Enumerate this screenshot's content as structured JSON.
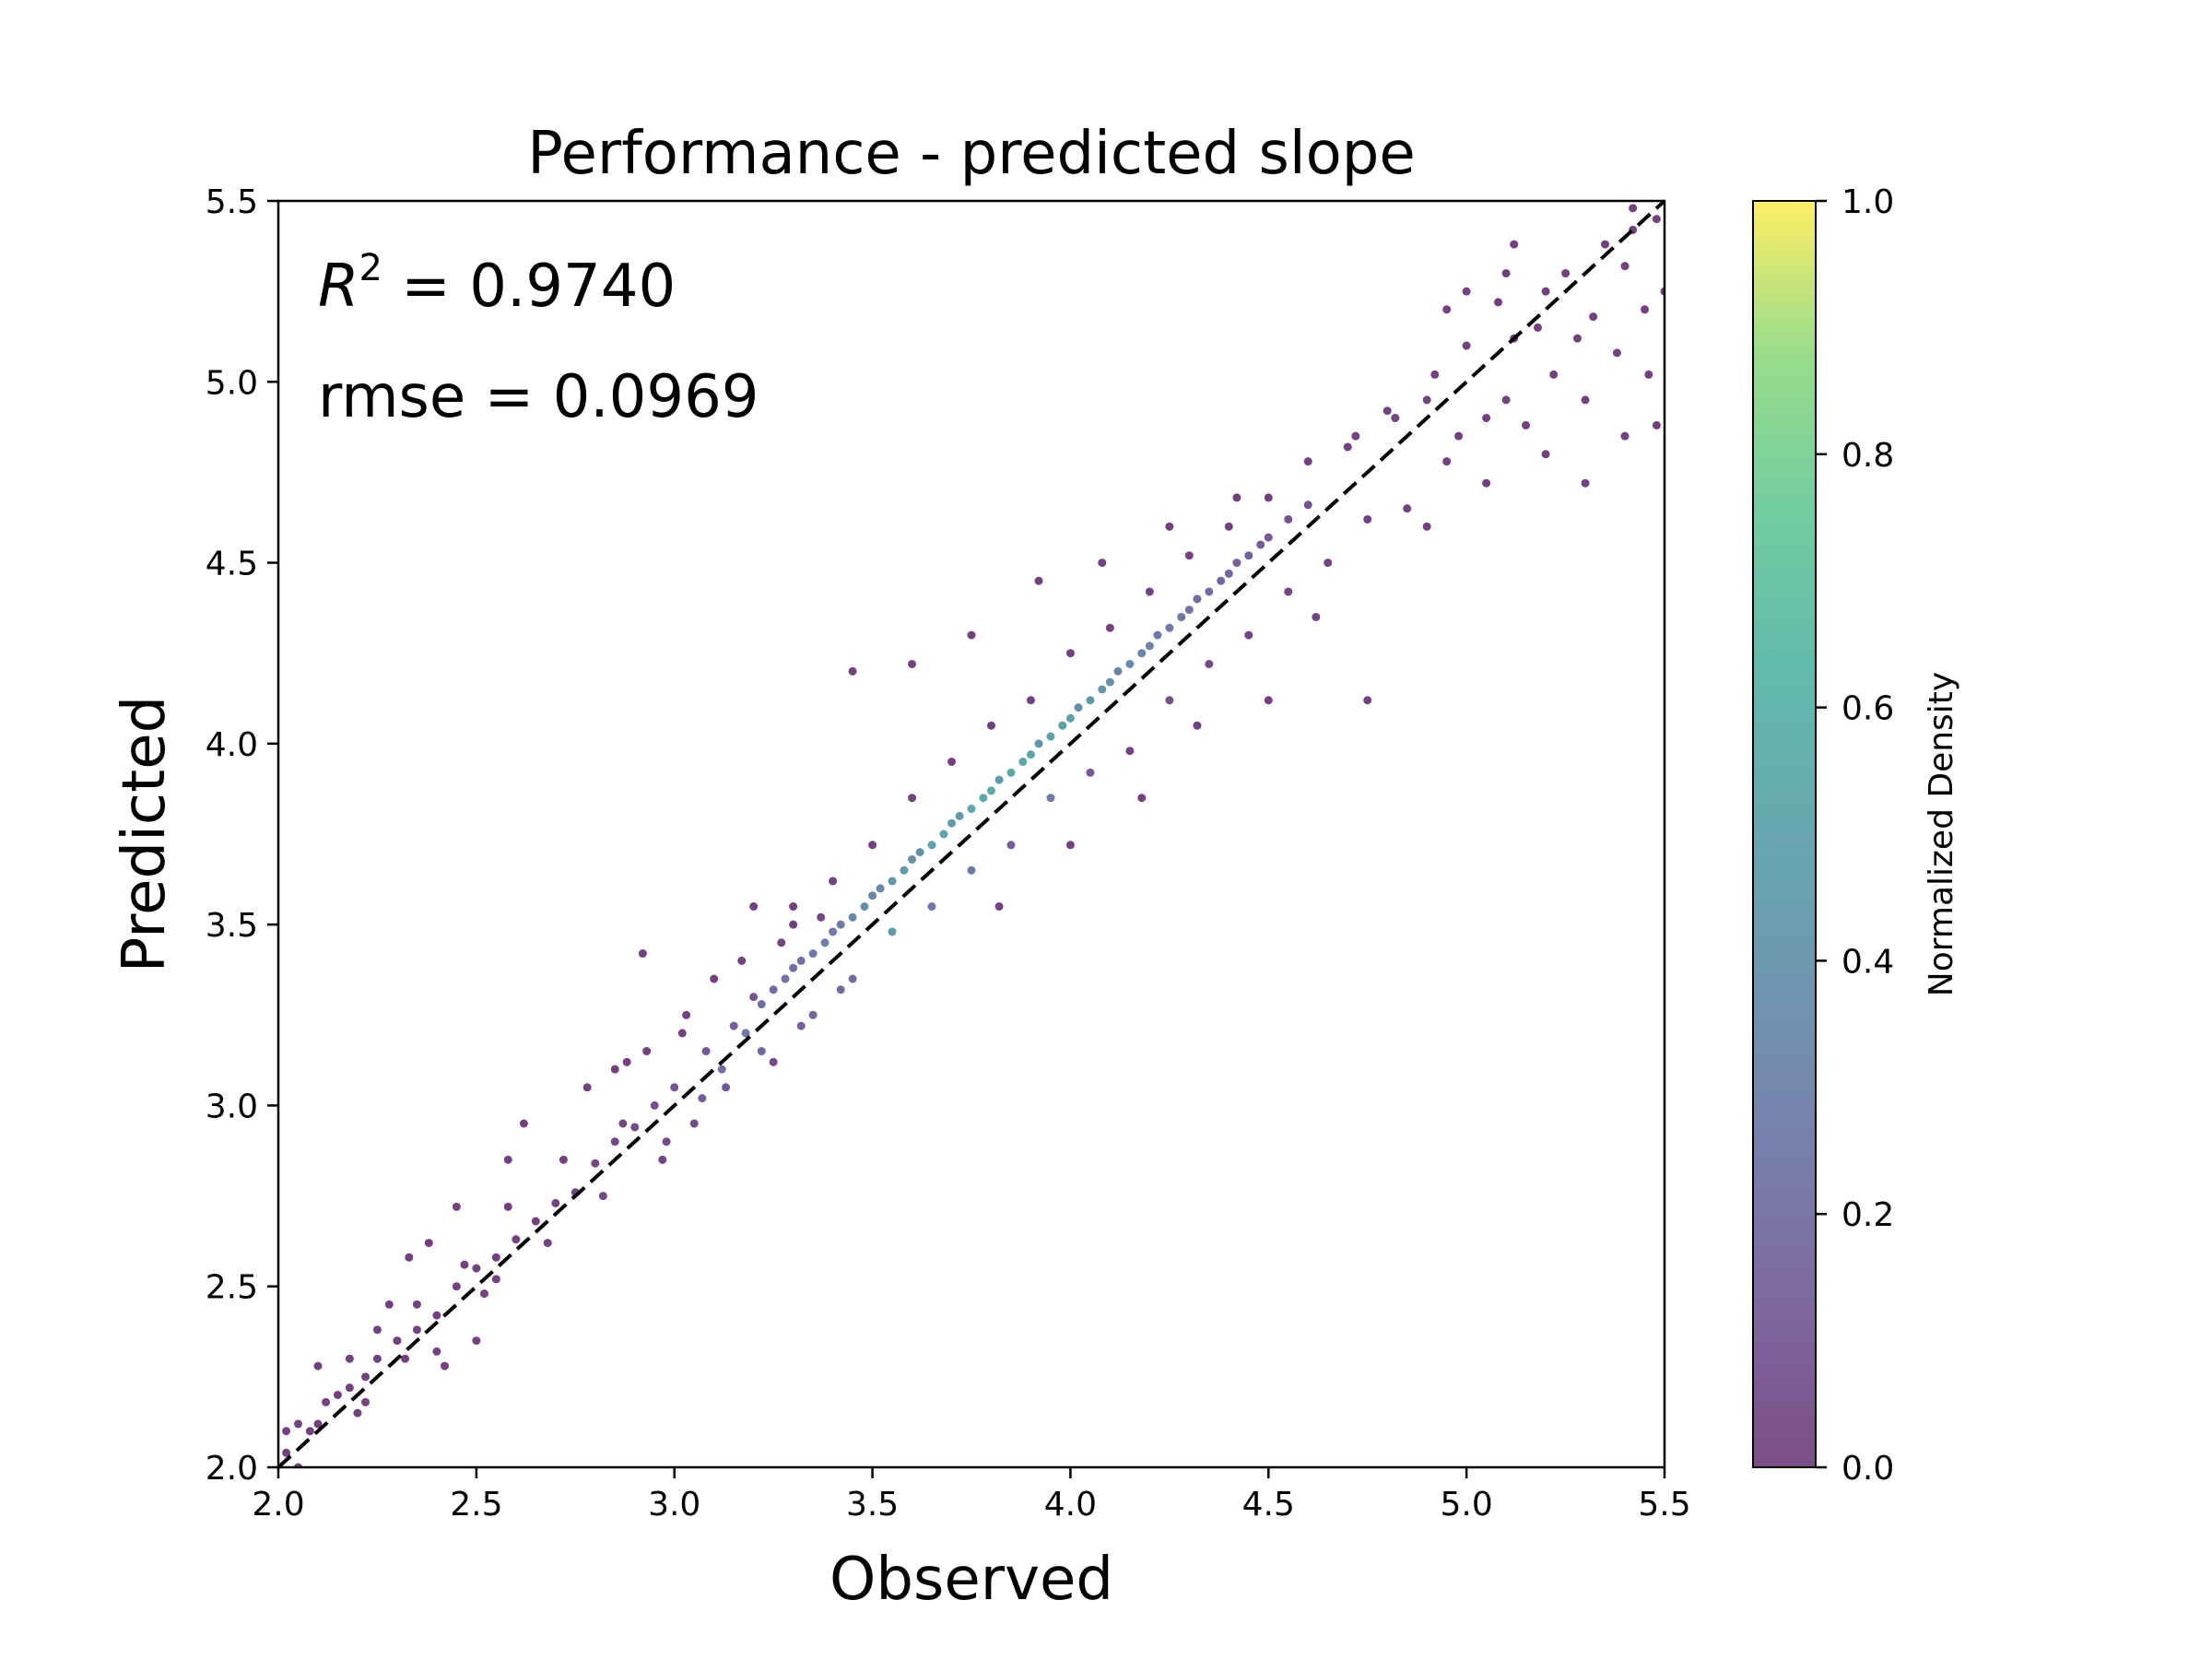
{
  "chart_data": {
    "type": "scatter",
    "title": "Performance - predicted slope",
    "xlabel": "Observed",
    "ylabel": "Predicted",
    "xlim": [
      2.0,
      5.5
    ],
    "ylim": [
      2.0,
      5.5
    ],
    "x_ticks": [
      "2.0",
      "2.5",
      "3.0",
      "3.5",
      "4.0",
      "4.5",
      "5.0",
      "5.5"
    ],
    "y_ticks": [
      "2.0",
      "2.5",
      "3.0",
      "3.5",
      "4.0",
      "4.5",
      "5.0",
      "5.5"
    ],
    "grid": false,
    "annotations": {
      "r2_symbol": "R",
      "r2_exponent": "2",
      "r2_value": " = 0.9740",
      "rmse": "rmse = 0.0969"
    },
    "reference_line": {
      "style": "dashed",
      "color": "#000000",
      "from": [
        2.0,
        2.0
      ],
      "to": [
        5.5,
        5.5
      ]
    },
    "colorbar": {
      "label": "Normalized Density",
      "colormap": "viridis",
      "range": [
        0.0,
        1.0
      ],
      "ticks": [
        "0.0",
        "0.2",
        "0.4",
        "0.6",
        "0.8",
        "1.0"
      ],
      "alpha": 0.7
    },
    "point_color_low": "#440154",
    "point_color_high": "#fde725",
    "points": [
      [
        2.02,
        2.04
      ],
      [
        2.05,
        2.12
      ],
      [
        2.08,
        2.1
      ],
      [
        2.12,
        2.18
      ],
      [
        2.18,
        2.22
      ],
      [
        2.22,
        2.25
      ],
      [
        2.25,
        2.3
      ],
      [
        2.3,
        2.35
      ],
      [
        2.35,
        2.38
      ],
      [
        2.4,
        2.42
      ],
      [
        2.45,
        2.5
      ],
      [
        2.5,
        2.55
      ],
      [
        2.55,
        2.58
      ],
      [
        2.6,
        2.63
      ],
      [
        2.65,
        2.68
      ],
      [
        2.7,
        2.73
      ],
      [
        2.28,
        2.45
      ],
      [
        2.33,
        2.58
      ],
      [
        2.38,
        2.62
      ],
      [
        2.42,
        2.28
      ],
      [
        2.47,
        2.56
      ],
      [
        2.52,
        2.48
      ],
      [
        2.58,
        2.72
      ],
      [
        2.62,
        2.95
      ],
      [
        2.68,
        2.62
      ],
      [
        2.72,
        2.85
      ],
      [
        2.75,
        2.76
      ],
      [
        2.8,
        2.84
      ],
      [
        2.85,
        2.9
      ],
      [
        2.9,
        2.94
      ],
      [
        2.95,
        3.0
      ],
      [
        3.0,
        3.05
      ],
      [
        2.88,
        3.12
      ],
      [
        2.92,
        3.42
      ],
      [
        2.97,
        2.85
      ],
      [
        3.02,
        3.2
      ],
      [
        3.05,
        2.95
      ],
      [
        3.08,
        3.15
      ],
      [
        3.12,
        3.1
      ],
      [
        3.15,
        3.22
      ],
      [
        3.18,
        3.2
      ],
      [
        3.2,
        3.3
      ],
      [
        3.22,
        3.28
      ],
      [
        3.25,
        3.32
      ],
      [
        3.28,
        3.35
      ],
      [
        3.3,
        3.38
      ],
      [
        3.32,
        3.4
      ],
      [
        3.35,
        3.42
      ],
      [
        3.38,
        3.45
      ],
      [
        3.4,
        3.48
      ],
      [
        3.42,
        3.5
      ],
      [
        3.45,
        3.52
      ],
      [
        3.48,
        3.55
      ],
      [
        3.5,
        3.58
      ],
      [
        3.52,
        3.6
      ],
      [
        3.55,
        3.62
      ],
      [
        3.58,
        3.65
      ],
      [
        3.6,
        3.68
      ],
      [
        3.62,
        3.7
      ],
      [
        3.65,
        3.72
      ],
      [
        3.68,
        3.75
      ],
      [
        3.7,
        3.78
      ],
      [
        3.72,
        3.8
      ],
      [
        3.75,
        3.82
      ],
      [
        3.78,
        3.85
      ],
      [
        3.8,
        3.87
      ],
      [
        3.82,
        3.9
      ],
      [
        3.85,
        3.92
      ],
      [
        3.88,
        3.95
      ],
      [
        3.9,
        3.97
      ],
      [
        3.92,
        4.0
      ],
      [
        3.95,
        4.02
      ],
      [
        3.98,
        4.05
      ],
      [
        4.0,
        4.07
      ],
      [
        4.02,
        4.1
      ],
      [
        4.05,
        4.12
      ],
      [
        4.08,
        4.15
      ],
      [
        4.1,
        4.17
      ],
      [
        4.12,
        4.2
      ],
      [
        4.15,
        4.22
      ],
      [
        4.18,
        4.25
      ],
      [
        4.2,
        4.27
      ],
      [
        4.22,
        4.3
      ],
      [
        4.25,
        4.32
      ],
      [
        4.28,
        4.35
      ],
      [
        4.3,
        4.37
      ],
      [
        4.32,
        4.4
      ],
      [
        4.35,
        4.42
      ],
      [
        4.38,
        4.45
      ],
      [
        4.4,
        4.47
      ],
      [
        4.42,
        4.5
      ],
      [
        4.45,
        4.52
      ],
      [
        4.48,
        4.55
      ],
      [
        4.5,
        4.57
      ],
      [
        4.55,
        4.62
      ],
      [
        4.6,
        4.66
      ],
      [
        3.25,
        3.12
      ],
      [
        3.3,
        3.55
      ],
      [
        3.35,
        3.25
      ],
      [
        3.4,
        3.62
      ],
      [
        3.45,
        3.35
      ],
      [
        3.5,
        3.72
      ],
      [
        3.55,
        3.48
      ],
      [
        3.6,
        3.85
      ],
      [
        3.65,
        3.55
      ],
      [
        3.7,
        3.95
      ],
      [
        3.75,
        3.65
      ],
      [
        3.8,
        4.05
      ],
      [
        3.85,
        3.72
      ],
      [
        3.9,
        4.12
      ],
      [
        3.95,
        3.85
      ],
      [
        4.0,
        4.25
      ],
      [
        4.05,
        3.92
      ],
      [
        4.1,
        4.32
      ],
      [
        4.15,
        3.98
      ],
      [
        4.2,
        4.42
      ],
      [
        4.25,
        4.12
      ],
      [
        4.3,
        4.52
      ],
      [
        4.35,
        4.22
      ],
      [
        4.4,
        4.6
      ],
      [
        4.45,
        4.3
      ],
      [
        4.5,
        4.68
      ],
      [
        4.55,
        4.42
      ],
      [
        4.6,
        4.78
      ],
      [
        4.65,
        4.5
      ],
      [
        4.7,
        4.82
      ],
      [
        4.75,
        4.62
      ],
      [
        4.8,
        4.92
      ],
      [
        3.2,
        3.55
      ],
      [
        3.3,
        3.5
      ],
      [
        3.45,
        4.2
      ],
      [
        3.6,
        4.22
      ],
      [
        3.75,
        4.3
      ],
      [
        3.82,
        3.55
      ],
      [
        3.92,
        4.45
      ],
      [
        4.0,
        3.72
      ],
      [
        4.08,
        4.5
      ],
      [
        4.18,
        3.85
      ],
      [
        4.25,
        4.6
      ],
      [
        4.32,
        4.05
      ],
      [
        4.42,
        4.68
      ],
      [
        4.5,
        4.12
      ],
      [
        4.62,
        4.35
      ],
      [
        4.72,
        4.85
      ],
      [
        4.75,
        4.12
      ],
      [
        4.82,
        4.9
      ],
      [
        4.85,
        4.65
      ],
      [
        4.9,
        4.6
      ],
      [
        4.92,
        5.02
      ],
      [
        4.95,
        4.78
      ],
      [
        5.0,
        5.1
      ],
      [
        5.05,
        4.9
      ],
      [
        5.08,
        5.22
      ],
      [
        5.1,
        4.95
      ],
      [
        5.12,
        5.12
      ],
      [
        5.15,
        4.88
      ],
      [
        5.18,
        5.15
      ],
      [
        5.2,
        5.25
      ],
      [
        5.22,
        5.02
      ],
      [
        5.25,
        5.3
      ],
      [
        5.28,
        5.12
      ],
      [
        5.3,
        4.95
      ],
      [
        5.32,
        5.18
      ],
      [
        5.35,
        5.38
      ],
      [
        5.38,
        5.08
      ],
      [
        5.4,
        5.32
      ],
      [
        5.42,
        5.42
      ],
      [
        5.45,
        5.2
      ],
      [
        5.48,
        5.45
      ],
      [
        5.5,
        5.25
      ],
      [
        5.48,
        4.88
      ],
      [
        5.46,
        5.02
      ],
      [
        5.4,
        4.85
      ],
      [
        5.3,
        4.72
      ],
      [
        5.2,
        4.8
      ],
      [
        5.05,
        4.72
      ],
      [
        5.1,
        5.3
      ],
      [
        5.12,
        5.38
      ],
      [
        5.42,
        5.48
      ],
      [
        5.45,
        5.52
      ],
      [
        4.95,
        5.2
      ],
      [
        5.0,
        5.25
      ],
      [
        4.9,
        4.95
      ],
      [
        4.98,
        4.85
      ],
      [
        2.58,
        2.85
      ],
      [
        2.55,
        2.52
      ],
      [
        2.5,
        2.35
      ],
      [
        2.45,
        2.72
      ],
      [
        2.4,
        2.32
      ],
      [
        2.35,
        2.45
      ],
      [
        2.32,
        2.3
      ],
      [
        2.25,
        2.38
      ],
      [
        2.2,
        2.15
      ],
      [
        2.15,
        2.2
      ],
      [
        2.1,
        2.12
      ],
      [
        2.05,
        2.0
      ],
      [
        2.02,
        2.1
      ],
      [
        2.1,
        2.28
      ],
      [
        2.18,
        2.3
      ],
      [
        2.22,
        2.18
      ],
      [
        2.78,
        3.05
      ],
      [
        2.82,
        2.75
      ],
      [
        2.85,
        3.1
      ],
      [
        2.87,
        2.95
      ],
      [
        2.93,
        3.15
      ],
      [
        2.98,
        2.9
      ],
      [
        3.03,
        3.25
      ],
      [
        3.07,
        3.02
      ],
      [
        3.1,
        3.35
      ],
      [
        3.13,
        3.05
      ],
      [
        3.17,
        3.4
      ],
      [
        3.22,
        3.15
      ],
      [
        3.27,
        3.45
      ],
      [
        3.32,
        3.22
      ],
      [
        3.37,
        3.52
      ],
      [
        3.42,
        3.32
      ]
    ]
  }
}
